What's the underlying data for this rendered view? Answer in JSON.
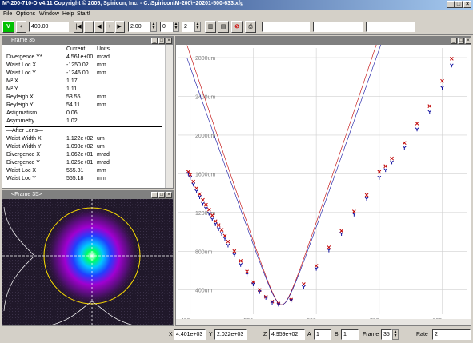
{
  "window": {
    "title": "M²-200-710-D   v4.11   Copyright © 2005, Spiricon, Inc. - C:\\Spiricon\\M-200\\~20201-500-633.xfg",
    "controls": [
      "_",
      "□",
      "×"
    ]
  },
  "menu": [
    "File",
    "Options",
    "Window",
    "Help",
    "Start!"
  ],
  "toolbar": {
    "focal_length": "400.00",
    "value_a": "2.00",
    "value_b": "0",
    "value_c": "2",
    "check_label": "V"
  },
  "data_panel": {
    "title": "Frame 35",
    "headers": {
      "name": "",
      "current": "Current",
      "units": "Units"
    },
    "rows": [
      {
        "name": "Divergence Y*",
        "value": "4.561e+00",
        "unit": "mrad"
      },
      {
        "name": "Waist Loc X",
        "value": "-1250.02",
        "unit": "mm"
      },
      {
        "name": "Waist Loc Y",
        "value": "-1246.00",
        "unit": "mm"
      },
      {
        "name": "M² X",
        "value": "1.17",
        "unit": ""
      },
      {
        "name": "M² Y",
        "value": "1.11",
        "unit": ""
      },
      {
        "name": "Reyleigh X",
        "value": "53.55",
        "unit": "mm"
      },
      {
        "name": "Reyleigh Y",
        "value": "54.11",
        "unit": "mm"
      },
      {
        "name": "Astigmatism",
        "value": "0.06",
        "unit": ""
      },
      {
        "name": "Asymmetry",
        "value": "1.02",
        "unit": ""
      }
    ],
    "after_lens_label": "—After Lens—",
    "after_rows": [
      {
        "name": "Waist Width X",
        "value": "1.122e+02",
        "unit": "um"
      },
      {
        "name": "Waist Width Y",
        "value": "1.098e+02",
        "unit": "um"
      },
      {
        "name": "Divergence X",
        "value": "1.062e+01",
        "unit": "mrad"
      },
      {
        "name": "Divergence Y",
        "value": "1.025e+01",
        "unit": "mrad"
      },
      {
        "name": "Waist Loc X",
        "value": "555.81",
        "unit": "mm"
      },
      {
        "name": "Waist Loc Y",
        "value": "555.18",
        "unit": "mm"
      }
    ]
  },
  "image_panel": {
    "title": "<Frame 35>"
  },
  "statusbar": {
    "x_label": "X",
    "x_value": "4.401e+03",
    "y_label": "Y",
    "y_value": "2.022e+03",
    "z_label": "Z",
    "z_value": "4.959e+02",
    "a_label": "A",
    "a_value": "1",
    "b_label": "B",
    "b_value": "1",
    "frame_label": "Frame",
    "frame_value": "35",
    "rate_label": "Rate",
    "rate_value": "2"
  },
  "chart_data": {
    "type": "scatter",
    "xlabel": "",
    "ylabel": "",
    "x_ticks": [
      "400mm",
      "500mm",
      "600mm",
      "700mm",
      "800mm"
    ],
    "y_ticks": [
      "400um",
      "800um",
      "1200um",
      "1600um",
      "2000um",
      "2400um",
      "2800um"
    ],
    "xlim": [
      380,
      840
    ],
    "ylim": [
      150,
      2900
    ],
    "grid": true,
    "series": [
      {
        "marker": "x",
        "color": "#c00000",
        "x": [
          397,
          400,
          405,
          410,
          415,
          420,
          425,
          430,
          435,
          440,
          445,
          450,
          455,
          460,
          470,
          480,
          490,
          500,
          510,
          520,
          530,
          540,
          560,
          580,
          600,
          620,
          640,
          660,
          680,
          700,
          710,
          720,
          740,
          760,
          780,
          800,
          815
        ],
        "y": [
          1620,
          1590,
          1520,
          1450,
          1390,
          1330,
          1280,
          1230,
          1170,
          1110,
          1070,
          1020,
          960,
          900,
          800,
          700,
          590,
          480,
          400,
          330,
          280,
          260,
          300,
          460,
          650,
          840,
          1010,
          1210,
          1380,
          1620,
          1680,
          1760,
          1920,
          2120,
          2300,
          2560,
          2790
        ]
      },
      {
        "marker": "y",
        "color": "#1010a0",
        "x": [
          397,
          400,
          405,
          410,
          415,
          420,
          425,
          430,
          435,
          440,
          445,
          450,
          455,
          460,
          470,
          480,
          490,
          500,
          510,
          520,
          530,
          540,
          560,
          580,
          600,
          620,
          640,
          660,
          680,
          700,
          710,
          720,
          740,
          760,
          780,
          800,
          815
        ],
        "y": [
          1600,
          1560,
          1490,
          1420,
          1360,
          1290,
          1240,
          1190,
          1130,
          1080,
          1030,
          980,
          930,
          860,
          760,
          660,
          560,
          460,
          380,
          320,
          270,
          250,
          290,
          430,
          620,
          810,
          980,
          1180,
          1340,
          1560,
          1640,
          1720,
          1870,
          2060,
          2240,
          2490,
          2720
        ]
      }
    ]
  }
}
